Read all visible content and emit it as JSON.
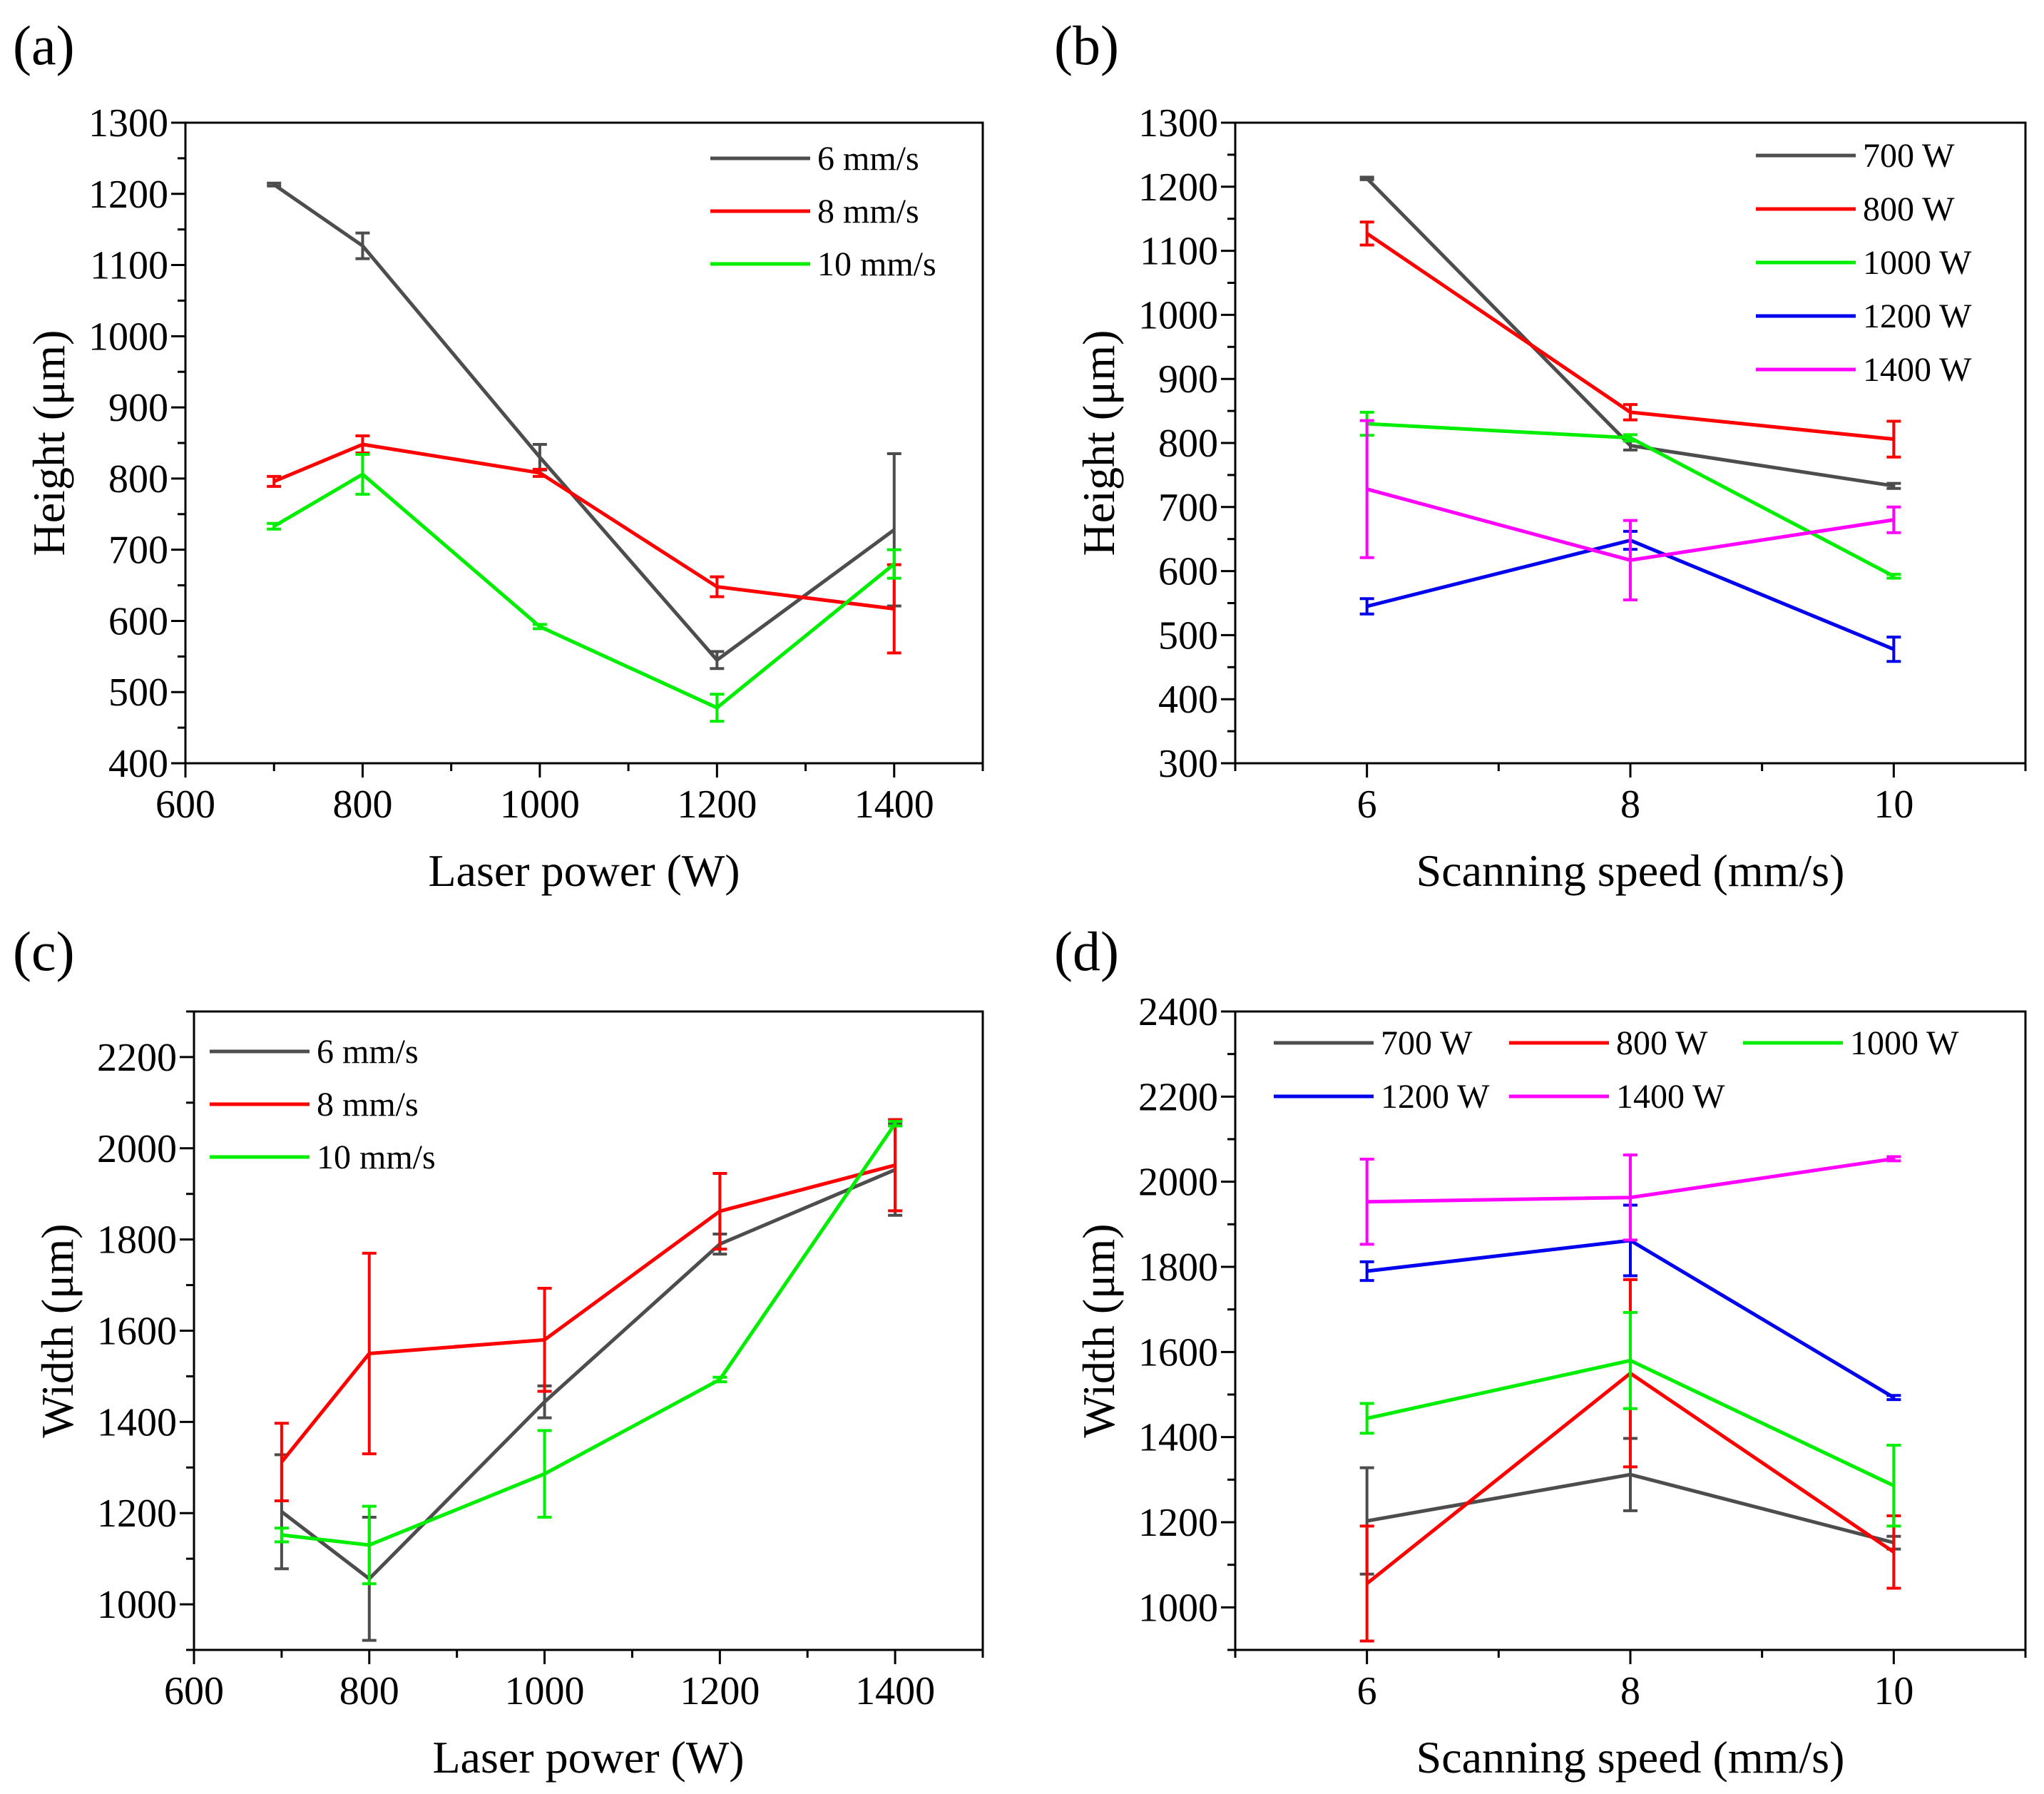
{
  "figure_title": "",
  "colors": {
    "gray": "#4d4d4d",
    "red": "#ff0000",
    "green": "#00ee00",
    "blue": "#0000ee",
    "magenta": "#ff00ff"
  },
  "chart_data": [
    {
      "id": "a",
      "panel_label": "(a)",
      "type": "line",
      "xlabel": "Laser power (W)",
      "ylabel": "Height (μm)",
      "xlim": [
        600,
        1500
      ],
      "ylim": [
        400,
        1300
      ],
      "xticks": [
        600,
        800,
        1000,
        1200,
        1400
      ],
      "yticks": [
        400,
        500,
        600,
        700,
        800,
        900,
        1000,
        1100,
        1200,
        1300
      ],
      "x_minor": 100,
      "y_minor": 50,
      "legend_position": "top-right",
      "series": [
        {
          "name": "6 mm/s",
          "color": "#4d4d4d",
          "points": [
            [
              700,
              1213,
              2
            ],
            [
              800,
              1127,
              18
            ],
            [
              1000,
              830,
              18
            ],
            [
              1200,
              545,
              12
            ],
            [
              1400,
              728,
              107
            ]
          ]
        },
        {
          "name": "8 mm/s",
          "color": "#ff0000",
          "points": [
            [
              700,
              796,
              7
            ],
            [
              800,
              848,
              12
            ],
            [
              1000,
              808,
              5
            ],
            [
              1200,
              648,
              14
            ],
            [
              1400,
              617,
              62
            ]
          ]
        },
        {
          "name": "10 mm/s",
          "color": "#00ee00",
          "points": [
            [
              700,
              733,
              4
            ],
            [
              800,
              806,
              28
            ],
            [
              1000,
              592,
              3
            ],
            [
              1200,
              478,
              19
            ],
            [
              1400,
              680,
              20
            ]
          ]
        }
      ]
    },
    {
      "id": "b",
      "panel_label": "(b)",
      "type": "line",
      "xlabel": "Scanning speed (mm/s)",
      "ylabel": "Height (μm)",
      "xlim": [
        5,
        11
      ],
      "ylim": [
        300,
        1300
      ],
      "xticks": [
        6,
        8,
        10
      ],
      "yticks": [
        300,
        400,
        500,
        600,
        700,
        800,
        900,
        1000,
        1100,
        1200,
        1300
      ],
      "x_minor": 1,
      "y_minor": 50,
      "legend_position": "top-right",
      "series": [
        {
          "name": "700 W",
          "color": "#4d4d4d",
          "points": [
            [
              6,
              1213,
              2
            ],
            [
              8,
              796,
              7
            ],
            [
              10,
              733,
              4
            ]
          ]
        },
        {
          "name": "800 W",
          "color": "#ff0000",
          "points": [
            [
              6,
              1127,
              18
            ],
            [
              8,
              848,
              12
            ],
            [
              10,
              806,
              28
            ]
          ]
        },
        {
          "name": "1000 W",
          "color": "#00ee00",
          "points": [
            [
              6,
              830,
              18
            ],
            [
              8,
              808,
              5
            ],
            [
              10,
              592,
              3
            ]
          ]
        },
        {
          "name": "1200 W",
          "color": "#0000ee",
          "points": [
            [
              6,
              545,
              12
            ],
            [
              8,
              648,
              14
            ],
            [
              10,
              478,
              19
            ]
          ]
        },
        {
          "name": "1400 W",
          "color": "#ff00ff",
          "points": [
            [
              6,
              728,
              107
            ],
            [
              8,
              617,
              62
            ],
            [
              10,
              680,
              20
            ]
          ]
        }
      ]
    },
    {
      "id": "c",
      "panel_label": "(c)",
      "type": "line",
      "xlabel": "Laser power (W)",
      "ylabel": "Width (μm)",
      "xlim": [
        600,
        1500
      ],
      "ylim": [
        900,
        2300
      ],
      "xticks": [
        600,
        800,
        1000,
        1200,
        1400
      ],
      "yticks": [
        1000,
        1200,
        1400,
        1600,
        1800,
        2000,
        2200
      ],
      "x_minor": 100,
      "y_minor": 100,
      "legend_position": "top-left",
      "series": [
        {
          "name": "6 mm/s",
          "color": "#4d4d4d",
          "points": [
            [
              700,
              1203,
              125
            ],
            [
              800,
              1056,
              135
            ],
            [
              1000,
              1444,
              35
            ],
            [
              1200,
              1790,
              22
            ],
            [
              1400,
              1953,
              100
            ]
          ]
        },
        {
          "name": "8 mm/s",
          "color": "#ff0000",
          "points": [
            [
              700,
              1312,
              85
            ],
            [
              800,
              1550,
              220
            ],
            [
              1000,
              1580,
              113
            ],
            [
              1200,
              1862,
              83
            ],
            [
              1400,
              1963,
              100
            ]
          ]
        },
        {
          "name": "10 mm/s",
          "color": "#00ee00",
          "points": [
            [
              700,
              1152,
              15
            ],
            [
              800,
              1130,
              85
            ],
            [
              1000,
              1286,
              95
            ],
            [
              1200,
              1493,
              5
            ],
            [
              1400,
              2054,
              5
            ]
          ]
        }
      ]
    },
    {
      "id": "d",
      "panel_label": "(d)",
      "type": "line",
      "xlabel": "Scanning speed (mm/s)",
      "ylabel": "Width (μm)",
      "xlim": [
        5,
        11
      ],
      "ylim": [
        900,
        2400
      ],
      "xticks": [
        6,
        8,
        10
      ],
      "yticks": [
        1000,
        1200,
        1400,
        1600,
        1800,
        2000,
        2200,
        2400
      ],
      "x_minor": 1,
      "y_minor": 100,
      "legend_position": "top (two rows)",
      "series": [
        {
          "name": "700 W",
          "color": "#4d4d4d",
          "points": [
            [
              6,
              1203,
              125
            ],
            [
              8,
              1312,
              85
            ],
            [
              10,
              1152,
              15
            ]
          ]
        },
        {
          "name": "800 W",
          "color": "#ff0000",
          "points": [
            [
              6,
              1056,
              135
            ],
            [
              8,
              1550,
              220
            ],
            [
              10,
              1130,
              85
            ]
          ]
        },
        {
          "name": "1000 W",
          "color": "#00ee00",
          "points": [
            [
              6,
              1444,
              35
            ],
            [
              8,
              1580,
              113
            ],
            [
              10,
              1286,
              95
            ]
          ]
        },
        {
          "name": "1200 W",
          "color": "#0000ee",
          "points": [
            [
              6,
              1790,
              22
            ],
            [
              8,
              1862,
              83
            ],
            [
              10,
              1493,
              5
            ]
          ]
        },
        {
          "name": "1400 W",
          "color": "#ff00ff",
          "points": [
            [
              6,
              1953,
              100
            ],
            [
              8,
              1963,
              100
            ],
            [
              10,
              2054,
              5
            ]
          ]
        }
      ]
    }
  ]
}
